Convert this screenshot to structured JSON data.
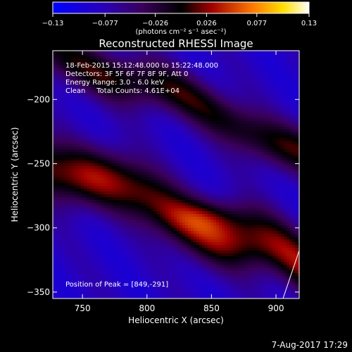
{
  "chart_data": {
    "type": "heatmap",
    "title": "Reconstructed RHESSI Image",
    "xlabel": "Heliocentric X (arcsec)",
    "ylabel": "Heliocentric Y (arcsec)",
    "xlim": [
      727,
      918
    ],
    "ylim": [
      -355,
      -162
    ],
    "x_ticks": [
      750,
      800,
      850,
      900
    ],
    "y_ticks": [
      -200,
      -250,
      -300,
      -350
    ],
    "x_tick_labels": [
      "750",
      "800",
      "850",
      "900"
    ],
    "y_tick_labels": [
      "−200",
      "−250",
      "−300",
      "−350"
    ],
    "colorbar": {
      "label": "(photons cm⁻² s⁻¹ asec⁻²)",
      "range": [
        -0.13,
        0.13
      ],
      "ticks": [
        -0.13,
        -0.077,
        -0.026,
        0.026,
        0.077,
        0.13
      ],
      "tick_labels": [
        "−0.13",
        "−0.077",
        "−0.026",
        "0.026",
        "0.077",
        "0.13"
      ]
    },
    "annotations": [
      "18-Feb-2015 15:12:48.000 to 15:22:48.000",
      "Detectors: 3F 5F 6F 7F 8F 9F, Att 0",
      "Energy Range: 3.0 - 6.0 keV",
      "Clean     Total Counts: 4.61E+04",
      "Position of Peak = [849,-291]"
    ],
    "peak": [
      849,
      -291
    ],
    "grid": false,
    "legend": "none"
  },
  "footer": {
    "date": "7-Aug-2017 17:29"
  }
}
